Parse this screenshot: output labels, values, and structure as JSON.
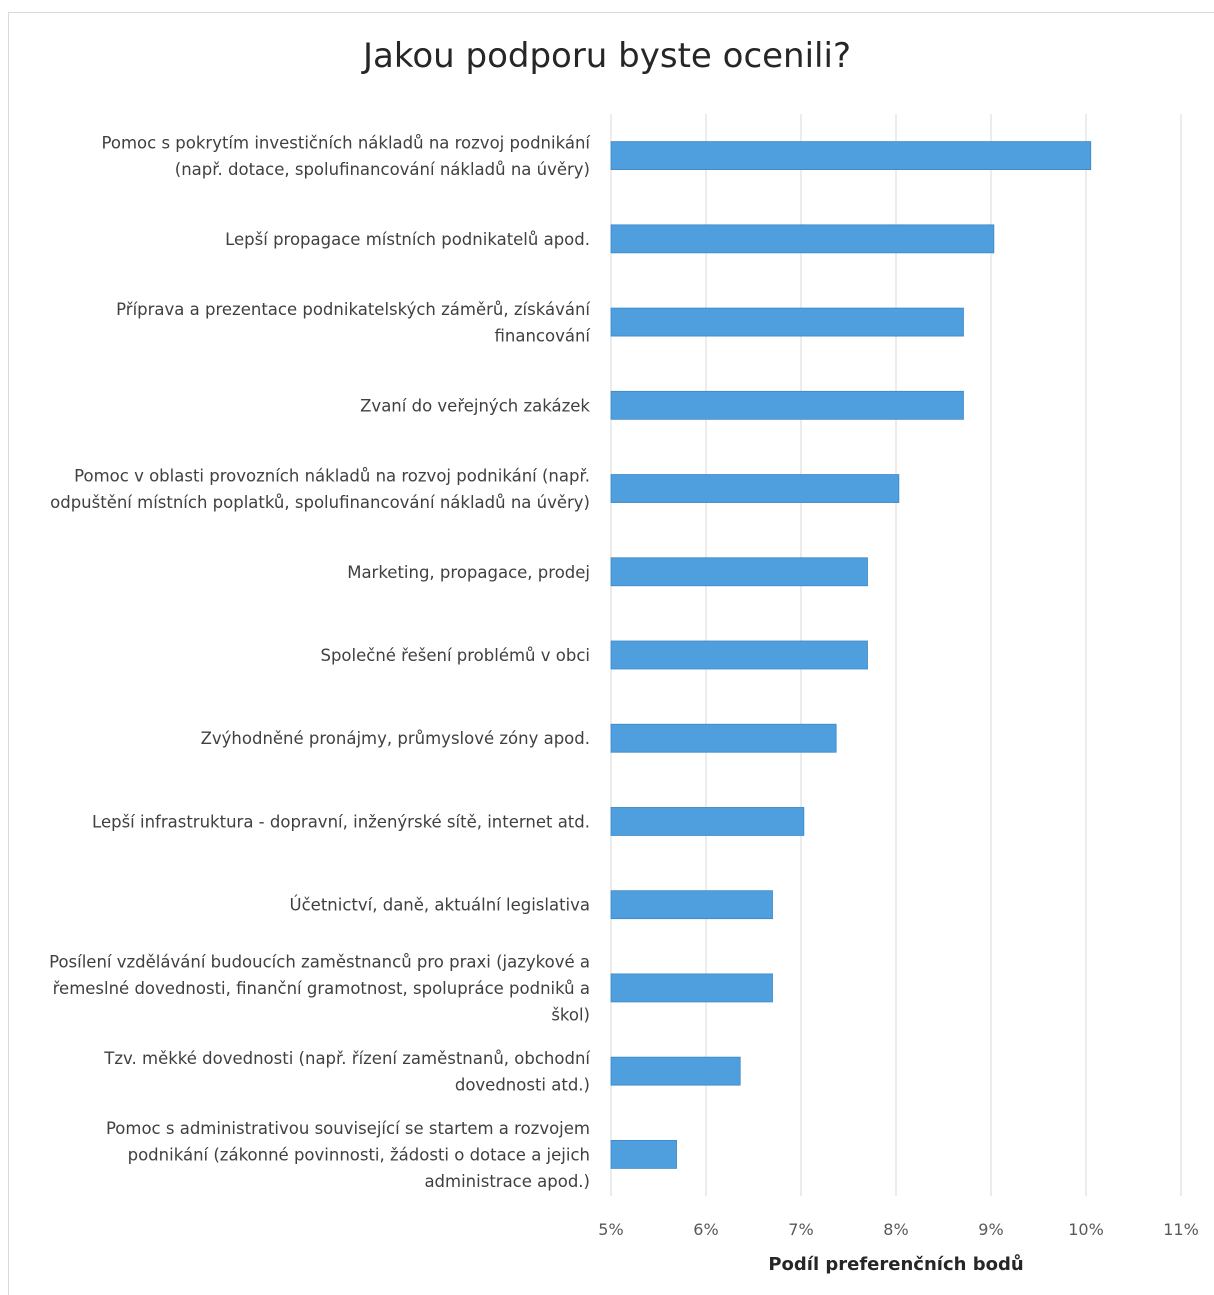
{
  "chart_data": {
    "type": "bar",
    "orientation": "horizontal",
    "title": "Jakou podporu byste ocenili?",
    "xlabel": "Podíl preferenčních bodů",
    "ylabel": "",
    "xlim": [
      0.05,
      0.11
    ],
    "x_ticks": [
      "5%",
      "6%",
      "7%",
      "8%",
      "9%",
      "10%",
      "11%"
    ],
    "grid": "vertical",
    "bar_color": "#4f9fdf",
    "categories": [
      [
        "Pomoc s pokrytím investičních nákladů na rozvoj podnikání",
        "(např. dotace, spolufinancování nákladů na úvěry)"
      ],
      [
        "Lepší propagace místních podnikatelů apod."
      ],
      [
        "Příprava a prezentace podnikatelských záměrů, získávání",
        "financování"
      ],
      [
        "Zvaní do veřejných zakázek"
      ],
      [
        "Pomoc v oblasti provozních nákladů na rozvoj podnikání (např.",
        "odpuštění místních poplatků, spolufinancování nákladů na úvěry)"
      ],
      [
        "Marketing, propagace, prodej"
      ],
      [
        "Společné řešení problémů v obci"
      ],
      [
        "Zvýhodněné pronájmy, průmyslové zóny apod."
      ],
      [
        "Lepší infrastruktura - dopravní, inženýrské sítě, internet atd."
      ],
      [
        "Účetnictví, daně, aktuální legislativa"
      ],
      [
        "Posílení vzdělávání budoucích zaměstnanců pro praxi (jazykové a",
        "řemeslné dovednosti, finanční gramotnost, spolupráce podniků a",
        "škol)"
      ],
      [
        "Tzv. měkké dovednosti (např. řízení zaměstnanů, obchodní",
        "dovednosti atd.)"
      ],
      [
        "Pomoc s administrativou související se startem a rozvojem",
        "podnikání (zákonné povinnosti, žádosti o dotace a jejich",
        "administrace apod.)"
      ]
    ],
    "values": [
      0.1005,
      0.0903,
      0.0871,
      0.0871,
      0.0803,
      0.077,
      0.077,
      0.0737,
      0.0703,
      0.067,
      0.067,
      0.0636,
      0.0569
    ]
  }
}
